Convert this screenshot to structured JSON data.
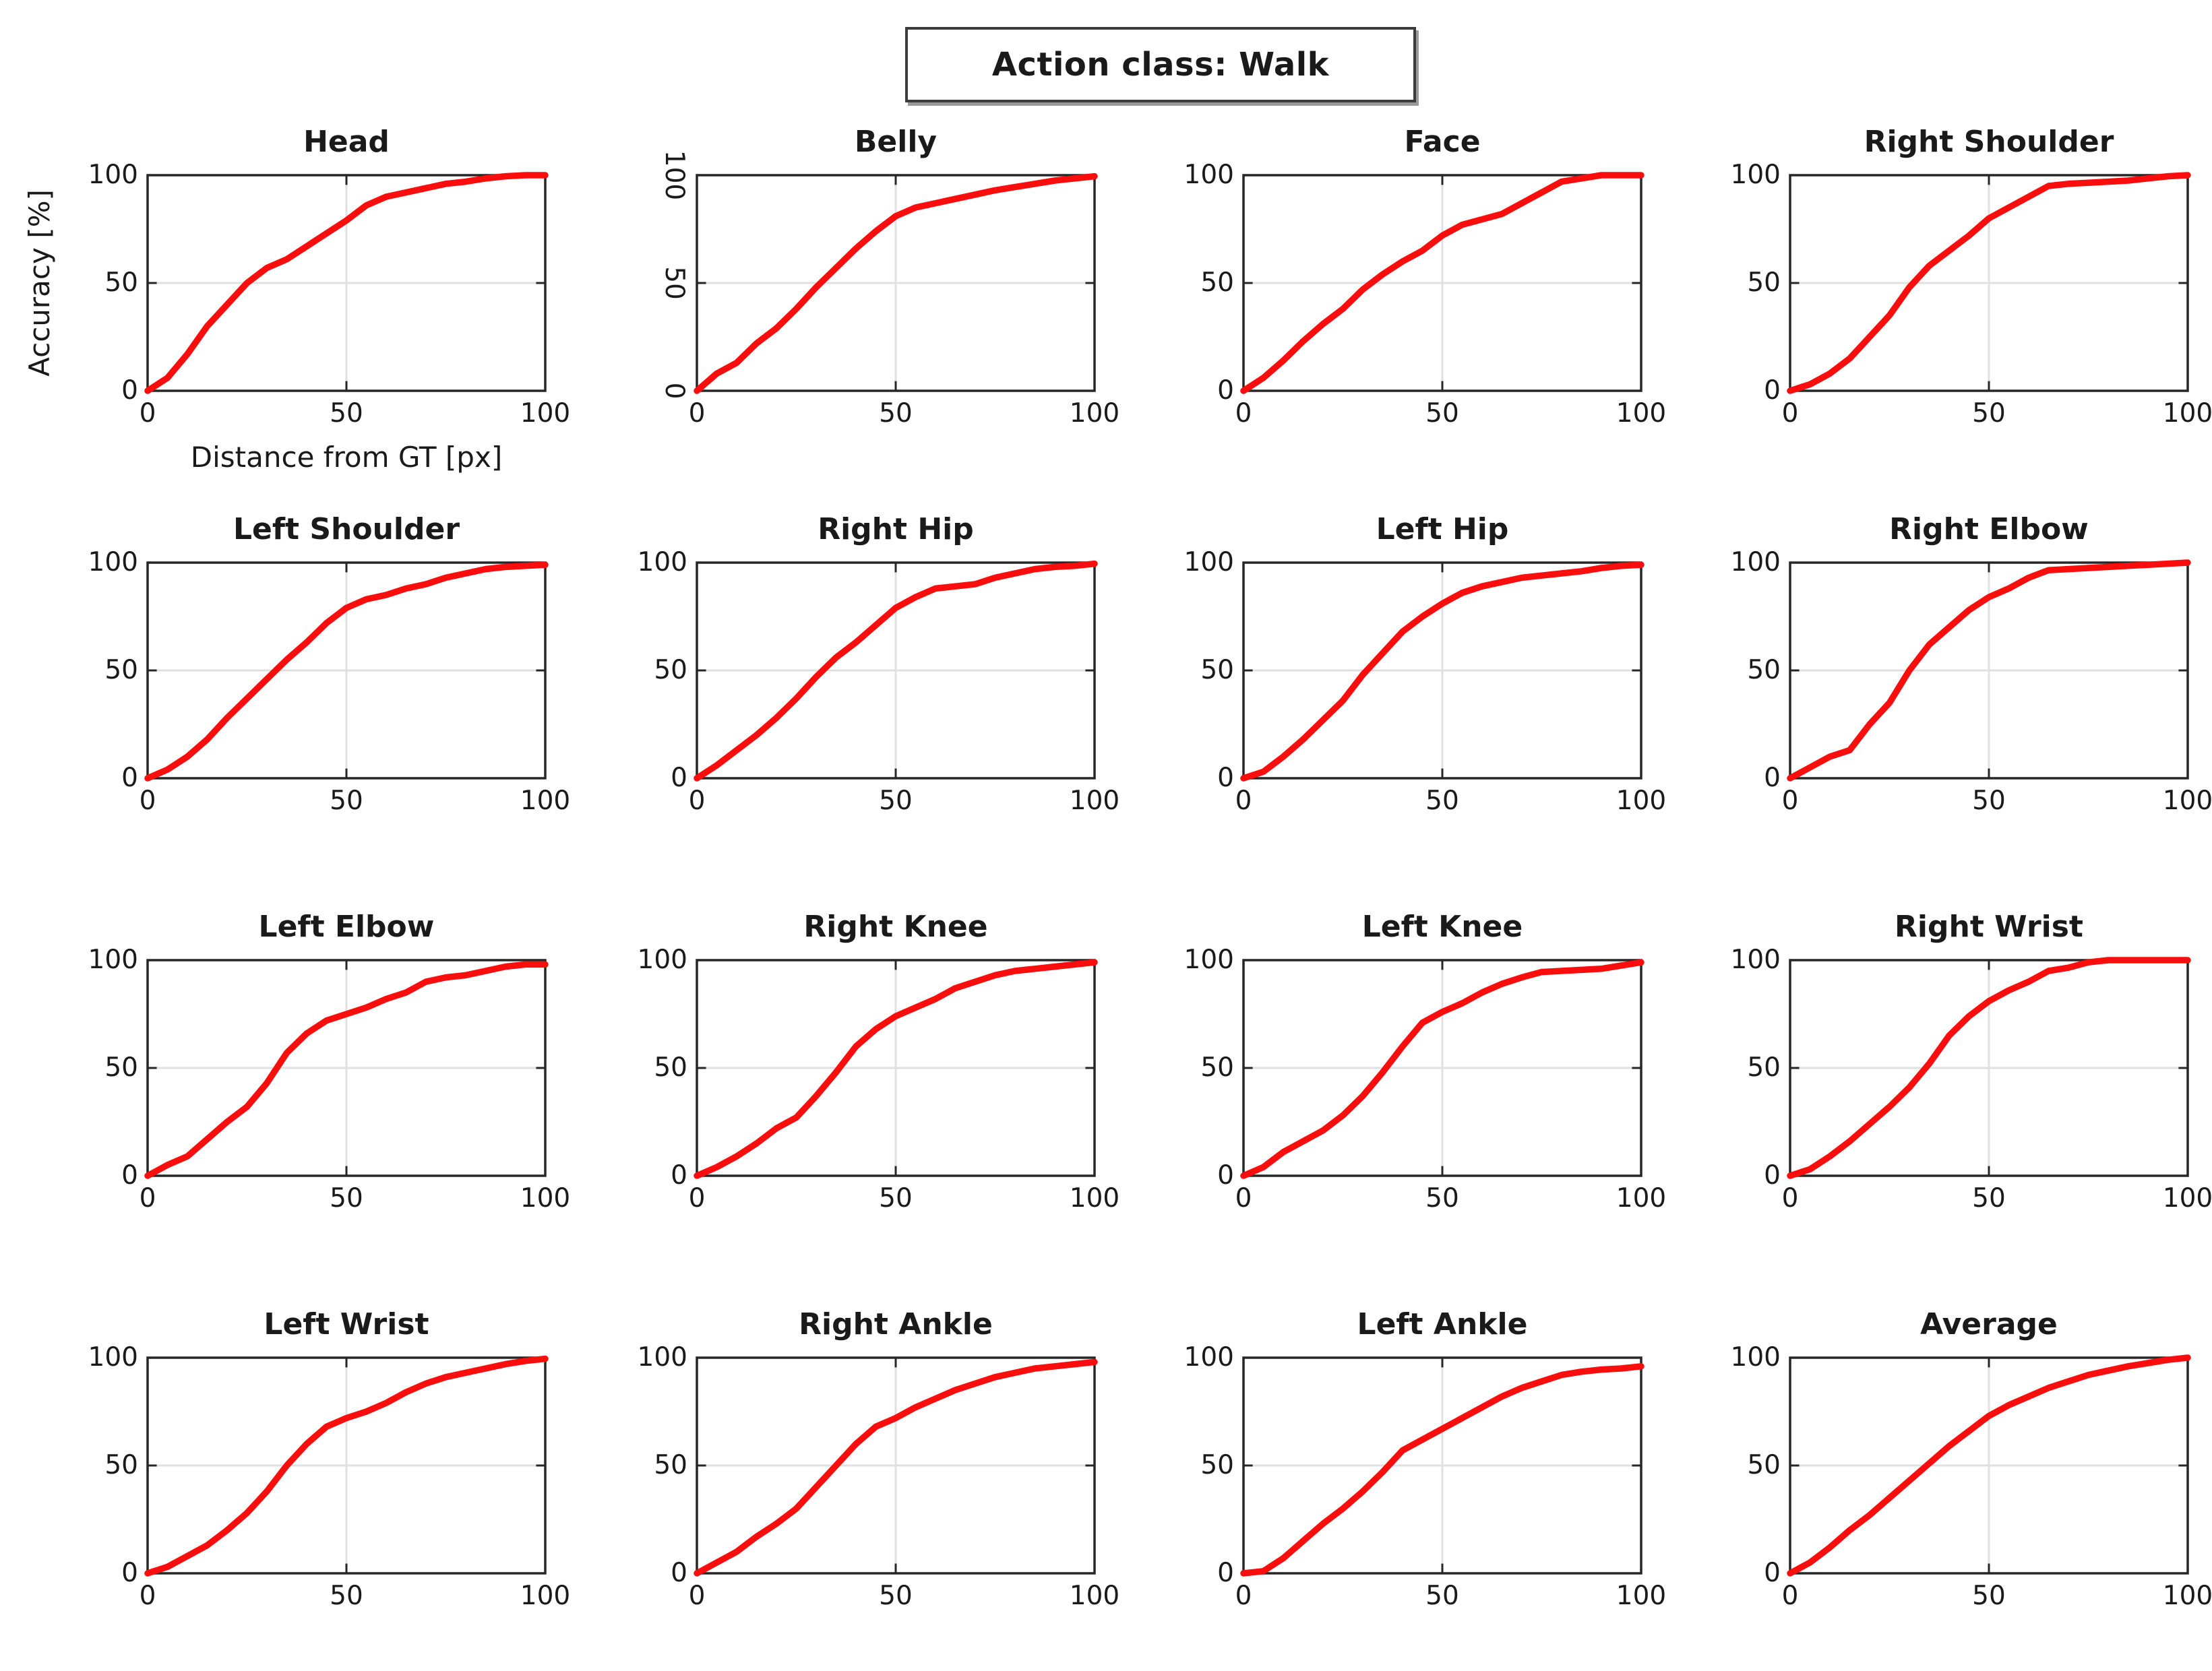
{
  "figure_title": "Action class: Walk",
  "axis": {
    "ylabel": "Accuracy [%]",
    "xlabel": "Distance from GT [px]",
    "yticks": [
      "100",
      "50",
      "0"
    ],
    "xticks": [
      "0",
      "50",
      "100"
    ],
    "xlim": [
      0,
      100
    ],
    "ylim": [
      0,
      100
    ],
    "grid": "on at 50 only"
  },
  "colors": {
    "curve": "#f90d0d",
    "grid": "#e0e0e0",
    "box": "#262626",
    "background": "#ffffff"
  },
  "chart_data": [
    {
      "type": "line",
      "title": "Head",
      "has_axis_labels": true,
      "y_ticks_rotated": false,
      "x": [
        0,
        5,
        10,
        15,
        20,
        25,
        30,
        35,
        40,
        45,
        50,
        55,
        60,
        65,
        70,
        75,
        80,
        85,
        90,
        95,
        100
      ],
      "y": [
        0,
        6,
        17,
        30,
        40,
        50,
        57,
        61,
        67,
        73,
        79,
        86,
        90,
        92,
        94,
        96,
        97,
        98.5,
        99.5,
        100,
        100
      ]
    },
    {
      "type": "line",
      "title": "Belly",
      "has_axis_labels": false,
      "y_ticks_rotated": true,
      "x": [
        0,
        5,
        10,
        15,
        20,
        25,
        30,
        35,
        40,
        45,
        50,
        55,
        60,
        65,
        70,
        75,
        80,
        85,
        90,
        95,
        100
      ],
      "y": [
        0,
        8,
        13,
        22,
        29,
        38,
        48,
        57,
        66,
        74,
        81,
        85,
        87,
        89,
        91,
        93,
        94.5,
        96,
        97.5,
        98.5,
        99.5
      ]
    },
    {
      "type": "line",
      "title": "Face",
      "has_axis_labels": false,
      "y_ticks_rotated": false,
      "x": [
        0,
        5,
        10,
        15,
        20,
        25,
        30,
        35,
        40,
        45,
        50,
        55,
        60,
        65,
        70,
        75,
        80,
        85,
        90,
        95,
        100
      ],
      "y": [
        0,
        6,
        14,
        23,
        31,
        38,
        47,
        54,
        60,
        65,
        72,
        77,
        79.5,
        82,
        87,
        92,
        97,
        98.5,
        100,
        100,
        100
      ]
    },
    {
      "type": "line",
      "title": "Right Shoulder",
      "has_axis_labels": false,
      "y_ticks_rotated": false,
      "x": [
        0,
        5,
        10,
        15,
        20,
        25,
        30,
        35,
        40,
        45,
        50,
        55,
        60,
        65,
        70,
        75,
        80,
        85,
        90,
        95,
        100
      ],
      "y": [
        0,
        3,
        8,
        15,
        25,
        35,
        48,
        58,
        65,
        72,
        80,
        85,
        90,
        95,
        96,
        96.5,
        97,
        97.5,
        98.5,
        99.5,
        100
      ]
    },
    {
      "type": "line",
      "title": "Left Shoulder",
      "has_axis_labels": false,
      "y_ticks_rotated": false,
      "x": [
        0,
        5,
        10,
        15,
        20,
        25,
        30,
        35,
        40,
        45,
        50,
        55,
        60,
        65,
        70,
        75,
        80,
        85,
        90,
        95,
        100
      ],
      "y": [
        0,
        4,
        10,
        18,
        28,
        37,
        46,
        55,
        63,
        72,
        79,
        83,
        85,
        88,
        90,
        93,
        95,
        97,
        98,
        98.5,
        99
      ]
    },
    {
      "type": "line",
      "title": "Right Hip",
      "has_axis_labels": false,
      "y_ticks_rotated": false,
      "x": [
        0,
        5,
        10,
        15,
        20,
        25,
        30,
        35,
        40,
        45,
        50,
        55,
        60,
        65,
        70,
        75,
        80,
        85,
        90,
        95,
        100
      ],
      "y": [
        0,
        6,
        13,
        20,
        28,
        37,
        47,
        56,
        63,
        71,
        79,
        84,
        88,
        89,
        90,
        93,
        95,
        97,
        98,
        98.5,
        99.5
      ]
    },
    {
      "type": "line",
      "title": "Left Hip",
      "has_axis_labels": false,
      "y_ticks_rotated": false,
      "x": [
        0,
        5,
        10,
        15,
        20,
        25,
        30,
        35,
        40,
        45,
        50,
        55,
        60,
        65,
        70,
        75,
        80,
        85,
        90,
        95,
        100
      ],
      "y": [
        0,
        3,
        10,
        18,
        27,
        36,
        48,
        58,
        68,
        75,
        81,
        86,
        89,
        91,
        93,
        94,
        95,
        96,
        97.5,
        98.5,
        99
      ]
    },
    {
      "type": "line",
      "title": "Right Elbow",
      "has_axis_labels": false,
      "y_ticks_rotated": false,
      "x": [
        0,
        5,
        10,
        15,
        20,
        25,
        30,
        35,
        40,
        45,
        50,
        55,
        60,
        65,
        70,
        75,
        80,
        85,
        90,
        95,
        100
      ],
      "y": [
        0,
        5,
        10,
        13,
        25,
        35,
        50,
        62,
        70,
        78,
        84,
        88,
        93,
        96.5,
        97,
        97.5,
        98,
        98.5,
        99,
        99.5,
        100
      ]
    },
    {
      "type": "line",
      "title": "Left Elbow",
      "has_axis_labels": false,
      "y_ticks_rotated": false,
      "x": [
        0,
        5,
        10,
        15,
        20,
        25,
        30,
        35,
        40,
        45,
        50,
        55,
        60,
        65,
        70,
        75,
        80,
        85,
        90,
        95,
        100
      ],
      "y": [
        0,
        5,
        9,
        17,
        25,
        32,
        43,
        57,
        66,
        72,
        75,
        78,
        82,
        85,
        90,
        92,
        93,
        95,
        97,
        98,
        98
      ]
    },
    {
      "type": "line",
      "title": "Right Knee",
      "has_axis_labels": false,
      "y_ticks_rotated": false,
      "x": [
        0,
        5,
        10,
        15,
        20,
        25,
        30,
        35,
        40,
        45,
        50,
        55,
        60,
        65,
        70,
        75,
        80,
        85,
        90,
        95,
        100
      ],
      "y": [
        0,
        4,
        9,
        15,
        22,
        27,
        37,
        48,
        60,
        68,
        74,
        78,
        82,
        87,
        90,
        93,
        95,
        96,
        97,
        98,
        99
      ]
    },
    {
      "type": "line",
      "title": "Left Knee",
      "has_axis_labels": false,
      "y_ticks_rotated": false,
      "x": [
        0,
        5,
        10,
        15,
        20,
        25,
        30,
        35,
        40,
        45,
        50,
        55,
        60,
        65,
        70,
        75,
        80,
        85,
        90,
        95,
        100
      ],
      "y": [
        0,
        4,
        11,
        16,
        21,
        28,
        37,
        48,
        60,
        71,
        76,
        80,
        85,
        89,
        92,
        94.5,
        95,
        95.5,
        96,
        97.5,
        99
      ]
    },
    {
      "type": "line",
      "title": "Right Wrist",
      "has_axis_labels": false,
      "y_ticks_rotated": false,
      "x": [
        0,
        5,
        10,
        15,
        20,
        25,
        30,
        35,
        40,
        45,
        50,
        55,
        60,
        65,
        70,
        75,
        80,
        85,
        90,
        95,
        100
      ],
      "y": [
        0,
        3,
        9,
        16,
        24,
        32,
        41,
        52,
        65,
        74,
        81,
        86,
        90,
        95,
        96.5,
        99,
        100,
        100,
        100,
        100,
        100
      ]
    },
    {
      "type": "line",
      "title": "Left Wrist",
      "has_axis_labels": false,
      "y_ticks_rotated": false,
      "x": [
        0,
        5,
        10,
        15,
        20,
        25,
        30,
        35,
        40,
        45,
        50,
        55,
        60,
        65,
        70,
        75,
        80,
        85,
        90,
        95,
        100
      ],
      "y": [
        0,
        3,
        8,
        13,
        20,
        28,
        38,
        50,
        60,
        68,
        72,
        75,
        79,
        84,
        88,
        91,
        93,
        95,
        97,
        98.5,
        99.5
      ]
    },
    {
      "type": "line",
      "title": "Right Ankle",
      "has_axis_labels": false,
      "y_ticks_rotated": false,
      "x": [
        0,
        5,
        10,
        15,
        20,
        25,
        30,
        35,
        40,
        45,
        50,
        55,
        60,
        65,
        70,
        75,
        80,
        85,
        90,
        95,
        100
      ],
      "y": [
        0,
        5,
        10,
        17,
        23,
        30,
        40,
        50,
        60,
        68,
        72,
        77,
        81,
        85,
        88,
        91,
        93,
        95,
        96,
        97,
        98
      ]
    },
    {
      "type": "line",
      "title": "Left Ankle",
      "has_axis_labels": false,
      "y_ticks_rotated": false,
      "x": [
        0,
        5,
        10,
        15,
        20,
        25,
        30,
        35,
        40,
        45,
        50,
        55,
        60,
        65,
        70,
        75,
        80,
        85,
        90,
        95,
        100
      ],
      "y": [
        0,
        1,
        7,
        15,
        23,
        30,
        38,
        47,
        57,
        62,
        67,
        72,
        77,
        82,
        86,
        89,
        92,
        93.5,
        94.5,
        95,
        96
      ]
    },
    {
      "type": "line",
      "title": "Average",
      "has_axis_labels": false,
      "y_ticks_rotated": false,
      "x": [
        0,
        5,
        10,
        15,
        20,
        25,
        30,
        35,
        40,
        45,
        50,
        55,
        60,
        65,
        70,
        75,
        80,
        85,
        90,
        95,
        100
      ],
      "y": [
        0,
        5,
        12,
        20,
        27,
        35,
        43,
        51,
        59,
        66,
        73,
        78,
        82,
        86,
        89,
        92,
        94,
        96,
        97.5,
        99,
        100
      ]
    }
  ]
}
